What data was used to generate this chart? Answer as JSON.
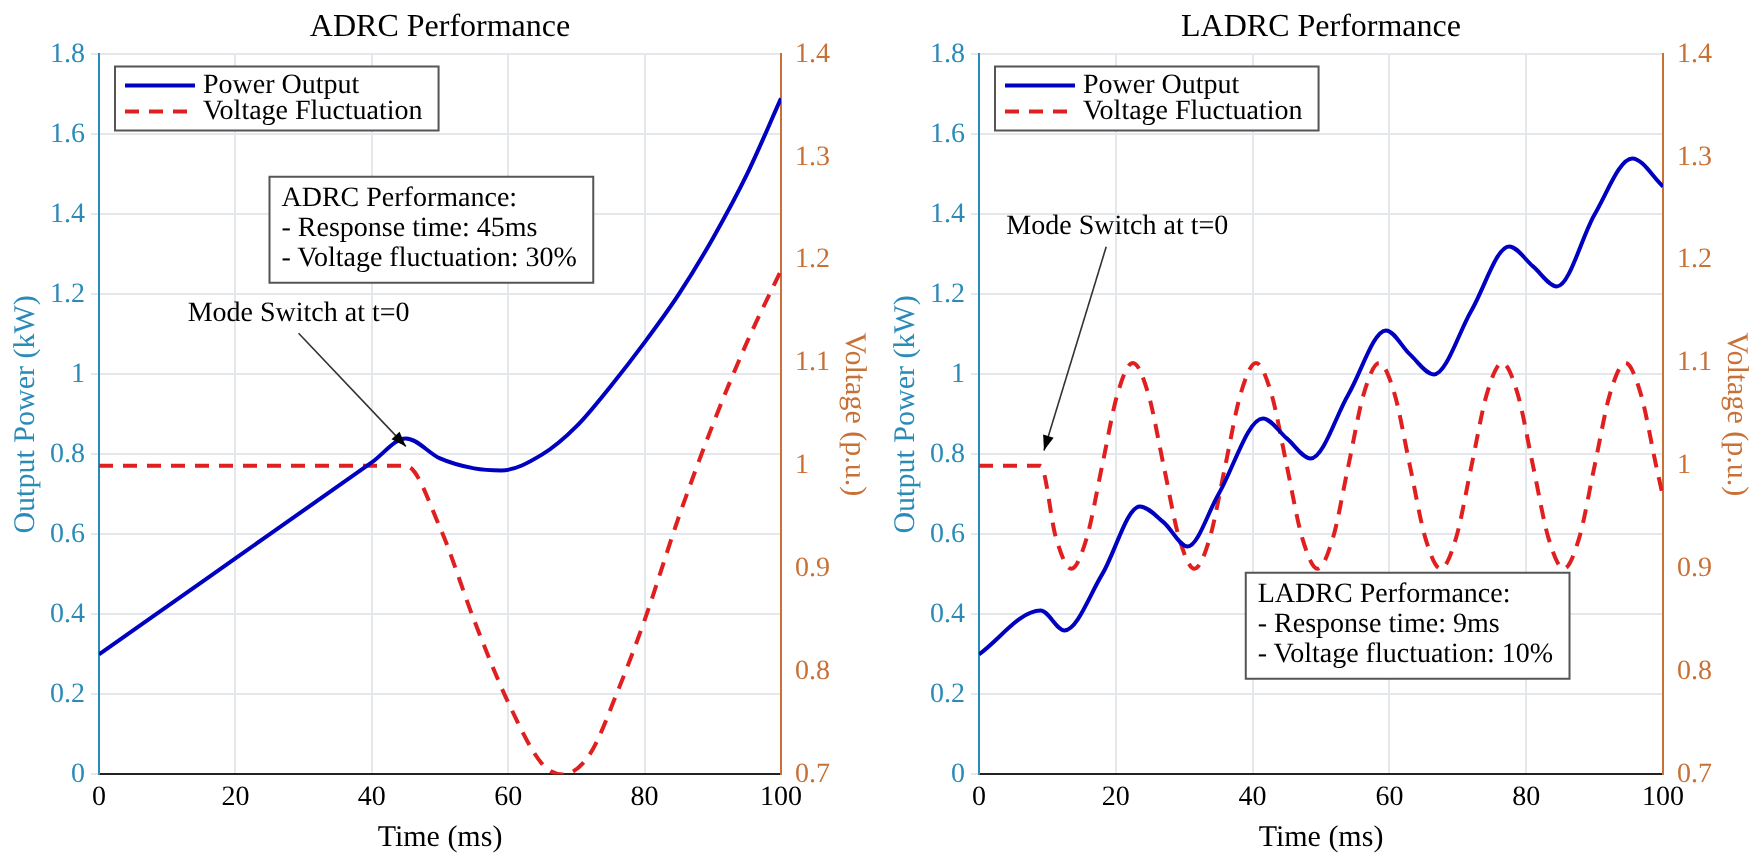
{
  "chart_data": [
    {
      "type": "line",
      "title": "ADRC Performance",
      "xlabel": "Time (ms)",
      "ylabel": "Output Power (kW)",
      "y2label": "Voltage (p.u.)",
      "xlim": [
        0,
        100
      ],
      "xticks": [
        0,
        20,
        40,
        60,
        80,
        100
      ],
      "ylim": [
        0,
        1.8
      ],
      "yticks": [
        0,
        0.2,
        0.4,
        0.6,
        0.8,
        1,
        1.2,
        1.4,
        1.6,
        1.8
      ],
      "y2lim": [
        0.7,
        1.4
      ],
      "y2ticks": [
        0.7,
        0.8,
        0.9,
        1,
        1.1,
        1.2,
        1.3,
        1.4
      ],
      "grid": true,
      "legend": "top left",
      "annotations": [
        "ADRC Performance:\n- Response time: 45ms\n- Voltage fluctuation: 30%",
        {
          "text": "Mode Switch at t=0",
          "x": 45,
          "y": 0.82
        }
      ],
      "series": [
        {
          "name": "Power Output",
          "color": "#0000c0",
          "line_style": "solid",
          "x": [
            0,
            10,
            20,
            30,
            40,
            45,
            50,
            55,
            59,
            65,
            70,
            75,
            80,
            85,
            90,
            95,
            100
          ],
          "values": [
            0.3,
            0.42,
            0.54,
            0.66,
            0.78,
            0.84,
            0.79,
            0.765,
            0.76,
            0.8,
            0.87,
            0.97,
            1.08,
            1.2,
            1.34,
            1.5,
            1.69
          ]
        },
        {
          "name": "Voltage Fluctuation",
          "color": "#e02020",
          "line_style": "dashed",
          "axis": "y2",
          "x": [
            0,
            45,
            50,
            55,
            60,
            65,
            68,
            72,
            76,
            80,
            85,
            90,
            95,
            100
          ],
          "values": [
            1,
            1,
            0.94,
            0.85,
            0.77,
            0.71,
            0.7,
            0.72,
            0.78,
            0.85,
            0.95,
            1.04,
            1.12,
            1.19
          ]
        }
      ]
    },
    {
      "type": "line",
      "title": "LADRC Performance",
      "xlabel": "Time (ms)",
      "ylabel": "Output Power (kW)",
      "y2label": "Voltage (p.u.)",
      "xlim": [
        0,
        100
      ],
      "xticks": [
        0,
        20,
        40,
        60,
        80,
        100
      ],
      "ylim": [
        0,
        1.8
      ],
      "yticks": [
        0,
        0.2,
        0.4,
        0.6,
        0.8,
        1,
        1.2,
        1.4,
        1.6,
        1.8
      ],
      "y2lim": [
        0.7,
        1.4
      ],
      "y2ticks": [
        0.7,
        0.8,
        0.9,
        1,
        1.1,
        1.2,
        1.3,
        1.4
      ],
      "grid": true,
      "legend": "top left",
      "annotations": [
        "LADRC Performance:\n- Response time: 9ms\n- Voltage fluctuation: 10%",
        "Mode Switch at t=0"
      ],
      "series": [
        {
          "name": "Power Output",
          "color": "#0000c0",
          "line_style": "solid",
          "x": [
            0,
            9,
            12.5,
            18,
            23.5,
            27,
            30.5,
            35,
            41.5,
            45,
            48.5,
            54,
            59.5,
            63,
            66.5,
            72,
            77.5,
            81,
            84.5,
            90,
            95.5,
            100
          ],
          "values": [
            0.3,
            0.41,
            0.36,
            0.5,
            0.67,
            0.63,
            0.57,
            0.7,
            0.89,
            0.84,
            0.79,
            0.95,
            1.11,
            1.05,
            1,
            1.16,
            1.32,
            1.27,
            1.22,
            1.4,
            1.54,
            1.47
          ]
        },
        {
          "name": "Voltage Fluctuation",
          "color": "#e02020",
          "line_style": "dashed",
          "axis": "y2",
          "x": [
            0,
            9,
            11.25,
            13.5,
            15.75,
            18,
            20.25,
            22.5,
            24.75,
            27,
            29.25,
            31.5,
            33.75,
            36,
            38.25,
            40.5,
            42.75,
            45,
            47.25,
            49.5,
            51.75,
            54,
            56.25,
            58.5,
            60.75,
            63,
            65.25,
            67.5,
            69.75,
            72,
            74.25,
            76.5,
            78.75,
            81,
            83.25,
            85.5,
            87.75,
            90,
            92.25,
            94.5,
            96.75,
            99,
            100
          ],
          "values": [
            1,
            1,
            0.93,
            0.9,
            0.93,
            1,
            1.07,
            1.1,
            1.07,
            1,
            0.93,
            0.9,
            0.93,
            1,
            1.07,
            1.1,
            1.07,
            1,
            0.93,
            0.9,
            0.93,
            1,
            1.07,
            1.1,
            1.07,
            1,
            0.93,
            0.9,
            0.93,
            1,
            1.07,
            1.1,
            1.07,
            1,
            0.93,
            0.9,
            0.93,
            1,
            1.07,
            1.1,
            1.07,
            1,
            0.97
          ]
        }
      ]
    }
  ]
}
